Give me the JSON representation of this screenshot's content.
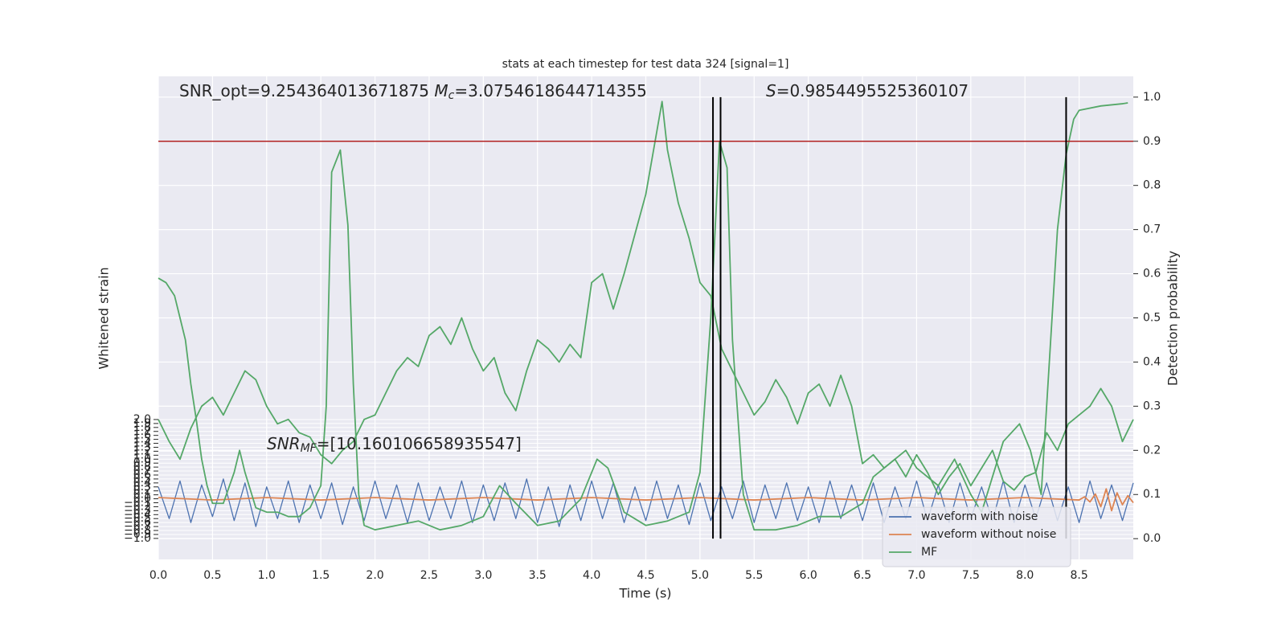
{
  "chart_data": {
    "type": "line",
    "title": "stats at each timestep for test data 324 [signal=1]",
    "xlabel": "Time (s)",
    "ylabel": "Whitened strain",
    "y2label": "Detection probability",
    "annotation_1": {
      "prefix": "SNR_opt=9.254364013671875 ",
      "symbol": "M",
      "subscript": "c",
      "value": "=3.0754618644714355"
    },
    "annotation_2": {
      "symbol": "S",
      "value": "=0.9854495525360107"
    },
    "annotation_3": {
      "symbol": "SNR",
      "subscript": "MF",
      "value": "=[10.160106658935547]"
    },
    "xlim": [
      0,
      9.0
    ],
    "ylim": [
      -1.53,
      10.66
    ],
    "y2lim": [
      -0.047,
      1.047
    ],
    "xticks": [
      {
        "value": 0,
        "label": "0.0"
      },
      0.5,
      {
        "value": 1,
        "label": "1.0"
      },
      1.5,
      {
        "value": 2,
        "label": "2.0"
      },
      2.5,
      {
        "value": 3,
        "label": "3.0"
      },
      3.5,
      {
        "value": 4,
        "label": "4.0"
      },
      4.5,
      {
        "value": 5,
        "label": "5.0"
      },
      5.5,
      {
        "value": 6,
        "label": "6.0"
      },
      6.5,
      {
        "value": 7,
        "label": "7.0"
      },
      7.5,
      {
        "value": 8,
        "label": "8.0"
      },
      8.5
    ],
    "yticks": [
      {
        "value": -1,
        "label": "−1.0"
      },
      {
        "value": -0.9,
        "label": "−0.9"
      },
      {
        "value": -0.8,
        "label": "−0.8"
      },
      {
        "value": -0.7,
        "label": "−0.7"
      },
      {
        "value": -0.6,
        "label": "−0.6"
      },
      {
        "value": -0.5,
        "label": "−0.5"
      },
      {
        "value": -0.4,
        "label": "−0.4"
      },
      {
        "value": -0.3,
        "label": "−0.3"
      },
      {
        "value": -0.2,
        "label": "−0.2"
      },
      {
        "value": -0.1,
        "label": "−0.1"
      },
      {
        "value": 0,
        "label": "0.0"
      },
      0.1,
      0.2,
      0.3,
      0.4,
      0.5,
      0.6,
      0.7,
      0.8,
      0.9,
      {
        "value": 1,
        "label": "1.0"
      },
      1.1,
      1.2,
      1.3,
      1.4,
      1.5,
      1.6,
      1.7,
      1.8,
      1.9,
      {
        "value": 2,
        "label": "2.0"
      }
    ],
    "y2ticks": [
      {
        "value": 0,
        "label": "0.0"
      },
      0.1,
      0.2,
      0.3,
      0.4,
      0.5,
      0.6,
      0.7,
      0.8,
      0.9,
      {
        "value": 1,
        "label": "1.0"
      }
    ],
    "grid": true,
    "legend": "lower right",
    "hline": 0.9,
    "hline_color": "#b22222",
    "vlines": [
      5.12,
      5.19,
      8.38
    ],
    "vline_color": "#000000",
    "series": [
      {
        "name": "waveform with noise",
        "color": "#4c72b0",
        "x": [
          0,
          0.1,
          0.2,
          0.3,
          0.4,
          0.5,
          0.6,
          0.7,
          0.8,
          0.9,
          1.0,
          1.1,
          1.2,
          1.3,
          1.4,
          1.5,
          1.6,
          1.7,
          1.8,
          1.9,
          2.0,
          2.1,
          2.2,
          2.3,
          2.4,
          2.5,
          2.6,
          2.7,
          2.8,
          2.9,
          3.0,
          3.1,
          3.2,
          3.3,
          3.4,
          3.5,
          3.6,
          3.7,
          3.8,
          3.9,
          4.0,
          4.1,
          4.2,
          4.3,
          4.4,
          4.5,
          4.6,
          4.7,
          4.8,
          4.9,
          5.0,
          5.1,
          5.2,
          5.3,
          5.4,
          5.5,
          5.6,
          5.7,
          5.8,
          5.9,
          6.0,
          6.1,
          6.2,
          6.3,
          6.4,
          6.5,
          6.6,
          6.7,
          6.8,
          6.9,
          7.0,
          7.1,
          7.2,
          7.3,
          7.4,
          7.5,
          7.6,
          7.7,
          7.8,
          7.9,
          8.0,
          8.1,
          8.2,
          8.3,
          8.4,
          8.5,
          8.6,
          8.7,
          8.8,
          8.9,
          9.0
        ],
        "values": [
          0.3,
          -0.5,
          0.45,
          -0.6,
          0.35,
          -0.45,
          0.5,
          -0.55,
          0.4,
          -0.7,
          0.3,
          -0.5,
          0.45,
          -0.6,
          0.35,
          -0.5,
          0.4,
          -0.65,
          0.3,
          -0.55,
          0.45,
          -0.5,
          0.35,
          -0.6,
          0.4,
          -0.55,
          0.3,
          -0.5,
          0.45,
          -0.6,
          0.35,
          -0.55,
          0.4,
          -0.5,
          0.5,
          -0.6,
          0.3,
          -0.7,
          0.35,
          -0.55,
          0.45,
          -0.5,
          0.4,
          -0.6,
          0.3,
          -0.55,
          0.45,
          -0.5,
          0.35,
          -0.65,
          0.4,
          -0.55,
          0.3,
          -0.5,
          0.45,
          -0.6,
          0.35,
          -0.5,
          0.4,
          -0.55,
          0.3,
          -0.6,
          0.45,
          -0.5,
          0.35,
          -0.55,
          0.4,
          -0.6,
          0.3,
          -0.5,
          0.45,
          -0.55,
          0.35,
          -0.6,
          0.4,
          -0.5,
          0.3,
          -0.55,
          0.45,
          -0.6,
          0.35,
          -0.5,
          0.4,
          -0.55,
          0.3,
          -0.6,
          0.45,
          -0.5,
          0.35,
          -0.55,
          0.4
        ]
      },
      {
        "name": "waveform without noise",
        "color": "#dd8452",
        "x": [
          0,
          0.5,
          1,
          1.5,
          2,
          2.5,
          3,
          3.5,
          4,
          4.5,
          5,
          5.5,
          6,
          6.5,
          7,
          7.5,
          8,
          8.5,
          8.55,
          8.6,
          8.65,
          8.7,
          8.75,
          8.8,
          8.85,
          8.9,
          8.95,
          9.0
        ],
        "values": [
          0.03,
          -0.03,
          0.03,
          -0.03,
          0.03,
          -0.03,
          0.03,
          -0.03,
          0.03,
          -0.03,
          0.03,
          -0.03,
          0.03,
          -0.03,
          0.03,
          -0.03,
          0.03,
          -0.03,
          0.05,
          -0.08,
          0.12,
          -0.2,
          0.25,
          -0.3,
          0.15,
          -0.15,
          0.08,
          -0.1
        ]
      },
      {
        "name": "MF",
        "color": "#55a868",
        "axis": "y2",
        "x": [
          0,
          0.07,
          0.15,
          0.2,
          0.25,
          0.3,
          0.35,
          0.4,
          0.45,
          0.5,
          0.6,
          0.7,
          0.75,
          0.8,
          0.9,
          1.0,
          1.1,
          1.2,
          1.3,
          1.4,
          1.5,
          1.55,
          1.6,
          1.68,
          1.75,
          1.8,
          1.85,
          1.9,
          2.0,
          2.2,
          2.4,
          2.6,
          2.8,
          3.0,
          3.15,
          3.3,
          3.5,
          3.7,
          3.9,
          4.05,
          4.15,
          4.3,
          4.5,
          4.7,
          4.9,
          5.0,
          5.1,
          5.18,
          5.25,
          5.3,
          5.4,
          5.5,
          5.7,
          5.9,
          6.1,
          6.3,
          6.5,
          6.6,
          6.8,
          6.9,
          7.0,
          7.2,
          7.35,
          7.5,
          7.6,
          7.8,
          7.95,
          8.05,
          8.15,
          8.3,
          8.38,
          8.45,
          8.5,
          8.7,
          8.9,
          8.95
        ],
        "values": [
          0.59,
          0.58,
          0.55,
          0.5,
          0.45,
          0.35,
          0.27,
          0.18,
          0.12,
          0.08,
          0.08,
          0.15,
          0.2,
          0.15,
          0.07,
          0.06,
          0.06,
          0.05,
          0.05,
          0.07,
          0.12,
          0.3,
          0.83,
          0.88,
          0.71,
          0.35,
          0.1,
          0.03,
          0.02,
          0.03,
          0.04,
          0.02,
          0.03,
          0.05,
          0.12,
          0.08,
          0.03,
          0.04,
          0.09,
          0.18,
          0.16,
          0.06,
          0.03,
          0.04,
          0.06,
          0.15,
          0.5,
          0.9,
          0.84,
          0.45,
          0.1,
          0.02,
          0.02,
          0.03,
          0.05,
          0.05,
          0.08,
          0.14,
          0.18,
          0.2,
          0.16,
          0.12,
          0.18,
          0.1,
          0.06,
          0.22,
          0.26,
          0.2,
          0.1,
          0.7,
          0.87,
          0.95,
          0.97,
          0.98,
          0.985,
          0.987
        ]
      },
      {
        "color": "#55a868",
        "axis": "y2",
        "x": [
          0,
          0.1,
          0.2,
          0.3,
          0.4,
          0.5,
          0.6,
          0.7,
          0.8,
          0.9,
          1.0,
          1.1,
          1.2,
          1.3,
          1.4,
          1.5,
          1.6,
          1.7,
          1.8,
          1.9,
          2.0,
          2.1,
          2.2,
          2.3,
          2.4,
          2.5,
          2.6,
          2.7,
          2.8,
          2.9,
          3.0,
          3.1,
          3.2,
          3.3,
          3.4,
          3.5,
          3.6,
          3.7,
          3.8,
          3.9,
          4.0,
          4.1,
          4.2,
          4.3,
          4.4,
          4.5,
          4.6,
          4.65,
          4.7,
          4.8,
          4.9,
          5.0,
          5.1,
          5.2,
          5.3,
          5.4,
          5.5,
          5.6,
          5.7,
          5.8,
          5.9,
          6.0,
          6.1,
          6.2,
          6.3,
          6.4,
          6.5,
          6.6,
          6.7,
          6.8,
          6.9,
          7.0,
          7.1,
          7.2,
          7.3,
          7.4,
          7.5,
          7.6,
          7.7,
          7.8,
          7.9,
          8.0,
          8.1,
          8.2,
          8.3,
          8.4,
          8.5,
          8.6,
          8.7,
          8.8,
          8.9,
          9.0
        ],
        "values": [
          0.27,
          0.22,
          0.18,
          0.25,
          0.3,
          0.32,
          0.28,
          0.33,
          0.38,
          0.36,
          0.3,
          0.26,
          0.27,
          0.24,
          0.23,
          0.19,
          0.17,
          0.2,
          0.22,
          0.27,
          0.28,
          0.33,
          0.38,
          0.41,
          0.39,
          0.46,
          0.48,
          0.44,
          0.5,
          0.43,
          0.38,
          0.41,
          0.33,
          0.29,
          0.38,
          0.45,
          0.43,
          0.4,
          0.44,
          0.41,
          0.58,
          0.6,
          0.52,
          0.6,
          0.69,
          0.78,
          0.92,
          0.99,
          0.88,
          0.76,
          0.68,
          0.58,
          0.55,
          0.43,
          0.38,
          0.33,
          0.28,
          0.31,
          0.36,
          0.32,
          0.26,
          0.33,
          0.35,
          0.3,
          0.37,
          0.3,
          0.17,
          0.19,
          0.16,
          0.18,
          0.14,
          0.19,
          0.15,
          0.1,
          0.14,
          0.17,
          0.12,
          0.16,
          0.2,
          0.13,
          0.11,
          0.14,
          0.15,
          0.24,
          0.2,
          0.26,
          0.28,
          0.3,
          0.34,
          0.3,
          0.22,
          0.27
        ]
      }
    ]
  }
}
